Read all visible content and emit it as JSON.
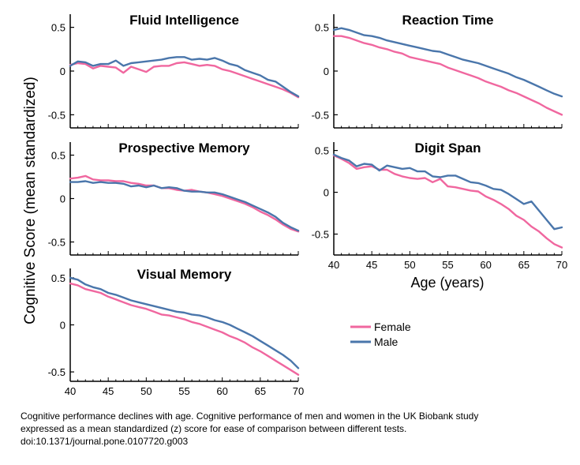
{
  "figure": {
    "ylabel": "Cognitive Score (mean standardized)",
    "xlabel": "Age (years)"
  },
  "caption": {
    "line1": "Cognitive performance declines with age. Cognitive performance of men and women in the UK Biobank study",
    "line2": "expressed as a mean standardized (z) score for ease of comparison between different tests.",
    "line3": "doi:10.1371/journal.pone.0107720.g003"
  },
  "colors": {
    "female": "#f0679f",
    "male": "#4a76ab",
    "axis": "#000000"
  },
  "chart_data": [
    {
      "type": "line",
      "title": "Fluid Intelligence",
      "x": [
        40,
        41,
        42,
        43,
        44,
        45,
        46,
        47,
        48,
        49,
        50,
        51,
        52,
        53,
        54,
        55,
        56,
        57,
        58,
        59,
        60,
        61,
        62,
        63,
        64,
        65,
        66,
        67,
        68,
        69,
        70
      ],
      "xlim": [
        40,
        70
      ],
      "ylim": [
        -0.65,
        0.65
      ],
      "yticks": [
        "0.5",
        "0",
        "-0.5"
      ],
      "xticks": [],
      "series": [
        {
          "name": "Female",
          "values": [
            0.07,
            0.09,
            0.08,
            0.03,
            0.06,
            0.05,
            0.04,
            -0.02,
            0.05,
            0.02,
            -0.01,
            0.05,
            0.06,
            0.06,
            0.09,
            0.1,
            0.08,
            0.06,
            0.07,
            0.06,
            0.02,
            0.0,
            -0.03,
            -0.06,
            -0.09,
            -0.12,
            -0.15,
            -0.18,
            -0.21,
            -0.25,
            -0.3
          ]
        },
        {
          "name": "Male",
          "values": [
            0.06,
            0.11,
            0.1,
            0.06,
            0.08,
            0.08,
            0.12,
            0.06,
            0.09,
            0.1,
            0.11,
            0.12,
            0.13,
            0.15,
            0.16,
            0.16,
            0.13,
            0.14,
            0.13,
            0.15,
            0.12,
            0.08,
            0.06,
            0.01,
            -0.02,
            -0.05,
            -0.1,
            -0.12,
            -0.18,
            -0.24,
            -0.29
          ]
        }
      ]
    },
    {
      "type": "line",
      "title": "Reaction Time",
      "x": [
        40,
        41,
        42,
        43,
        44,
        45,
        46,
        47,
        48,
        49,
        50,
        51,
        52,
        53,
        54,
        55,
        56,
        57,
        58,
        59,
        60,
        61,
        62,
        63,
        64,
        65,
        66,
        67,
        68,
        69,
        70
      ],
      "xlim": [
        40,
        70
      ],
      "ylim": [
        -0.65,
        0.65
      ],
      "yticks": [
        "0.5",
        "0",
        "-0.5"
      ],
      "xticks": [],
      "series": [
        {
          "name": "Female",
          "values": [
            0.4,
            0.4,
            0.38,
            0.35,
            0.32,
            0.3,
            0.27,
            0.25,
            0.22,
            0.2,
            0.16,
            0.14,
            0.12,
            0.1,
            0.08,
            0.04,
            0.01,
            -0.02,
            -0.05,
            -0.08,
            -0.12,
            -0.15,
            -0.18,
            -0.22,
            -0.25,
            -0.29,
            -0.33,
            -0.37,
            -0.42,
            -0.46,
            -0.5
          ]
        },
        {
          "name": "Male",
          "values": [
            0.47,
            0.49,
            0.47,
            0.44,
            0.41,
            0.4,
            0.38,
            0.35,
            0.33,
            0.31,
            0.29,
            0.27,
            0.25,
            0.23,
            0.22,
            0.19,
            0.16,
            0.13,
            0.11,
            0.09,
            0.06,
            0.03,
            0.0,
            -0.03,
            -0.07,
            -0.1,
            -0.14,
            -0.18,
            -0.22,
            -0.26,
            -0.29
          ]
        }
      ]
    },
    {
      "type": "line",
      "title": "Prospective Memory",
      "x": [
        40,
        41,
        42,
        43,
        44,
        45,
        46,
        47,
        48,
        49,
        50,
        51,
        52,
        53,
        54,
        55,
        56,
        57,
        58,
        59,
        60,
        61,
        62,
        63,
        64,
        65,
        66,
        67,
        68,
        69,
        70
      ],
      "xlim": [
        40,
        70
      ],
      "ylim": [
        -0.65,
        0.65
      ],
      "yticks": [
        "0.5",
        "0",
        "-0.5"
      ],
      "xticks": [],
      "series": [
        {
          "name": "Female",
          "values": [
            0.23,
            0.24,
            0.26,
            0.22,
            0.21,
            0.21,
            0.2,
            0.2,
            0.18,
            0.17,
            0.15,
            0.15,
            0.12,
            0.12,
            0.1,
            0.09,
            0.1,
            0.08,
            0.07,
            0.05,
            0.03,
            0.0,
            -0.03,
            -0.06,
            -0.1,
            -0.15,
            -0.19,
            -0.24,
            -0.3,
            -0.35,
            -0.38
          ]
        },
        {
          "name": "Male",
          "values": [
            0.19,
            0.19,
            0.2,
            0.18,
            0.19,
            0.18,
            0.18,
            0.17,
            0.14,
            0.15,
            0.13,
            0.15,
            0.12,
            0.13,
            0.12,
            0.09,
            0.08,
            0.08,
            0.07,
            0.07,
            0.05,
            0.02,
            -0.01,
            -0.04,
            -0.08,
            -0.12,
            -0.16,
            -0.21,
            -0.28,
            -0.33,
            -0.37
          ]
        }
      ]
    },
    {
      "type": "line",
      "title": "Digit Span",
      "x": [
        40,
        41,
        42,
        43,
        44,
        45,
        46,
        47,
        48,
        49,
        50,
        51,
        52,
        53,
        54,
        55,
        56,
        57,
        58,
        59,
        60,
        61,
        62,
        63,
        64,
        65,
        66,
        67,
        68,
        69,
        70
      ],
      "xlim": [
        40,
        70
      ],
      "ylim": [
        -0.75,
        0.6
      ],
      "yticks": [
        "0.5",
        "0",
        "-0.5"
      ],
      "xticks": [
        "40",
        "45",
        "50",
        "55",
        "60",
        "65",
        "70"
      ],
      "series": [
        {
          "name": "Female",
          "values": [
            0.44,
            0.4,
            0.35,
            0.28,
            0.3,
            0.31,
            0.27,
            0.27,
            0.22,
            0.19,
            0.17,
            0.16,
            0.17,
            0.12,
            0.16,
            0.07,
            0.06,
            0.04,
            0.02,
            0.01,
            -0.05,
            -0.09,
            -0.14,
            -0.2,
            -0.28,
            -0.33,
            -0.41,
            -0.47,
            -0.55,
            -0.62,
            -0.66
          ]
        },
        {
          "name": "Male",
          "values": [
            0.45,
            0.41,
            0.38,
            0.31,
            0.34,
            0.33,
            0.26,
            0.32,
            0.3,
            0.28,
            0.29,
            0.25,
            0.25,
            0.19,
            0.18,
            0.2,
            0.2,
            0.16,
            0.12,
            0.11,
            0.08,
            0.04,
            0.03,
            -0.02,
            -0.08,
            -0.14,
            -0.11,
            -0.22,
            -0.33,
            -0.44,
            -0.42
          ]
        }
      ]
    },
    {
      "type": "line",
      "title": "Visual Memory",
      "x": [
        40,
        41,
        42,
        43,
        44,
        45,
        46,
        47,
        48,
        49,
        50,
        51,
        52,
        53,
        54,
        55,
        56,
        57,
        58,
        59,
        60,
        61,
        62,
        63,
        64,
        65,
        66,
        67,
        68,
        69,
        70
      ],
      "xlim": [
        40,
        70
      ],
      "ylim": [
        -0.6,
        0.6
      ],
      "yticks": [
        "0.5",
        "0",
        "-0.5"
      ],
      "xticks": [
        "40",
        "45",
        "50",
        "55",
        "60",
        "65",
        "70"
      ],
      "series": [
        {
          "name": "Female",
          "values": [
            0.44,
            0.42,
            0.38,
            0.36,
            0.34,
            0.3,
            0.27,
            0.24,
            0.21,
            0.19,
            0.17,
            0.14,
            0.11,
            0.1,
            0.08,
            0.06,
            0.03,
            0.01,
            -0.02,
            -0.05,
            -0.08,
            -0.12,
            -0.15,
            -0.19,
            -0.24,
            -0.28,
            -0.33,
            -0.38,
            -0.43,
            -0.48,
            -0.53
          ]
        },
        {
          "name": "Male",
          "values": [
            0.5,
            0.48,
            0.43,
            0.4,
            0.38,
            0.34,
            0.32,
            0.29,
            0.26,
            0.24,
            0.22,
            0.2,
            0.18,
            0.16,
            0.14,
            0.13,
            0.11,
            0.1,
            0.08,
            0.05,
            0.03,
            0.0,
            -0.04,
            -0.08,
            -0.12,
            -0.17,
            -0.22,
            -0.27,
            -0.32,
            -0.38,
            -0.46
          ]
        }
      ]
    }
  ]
}
